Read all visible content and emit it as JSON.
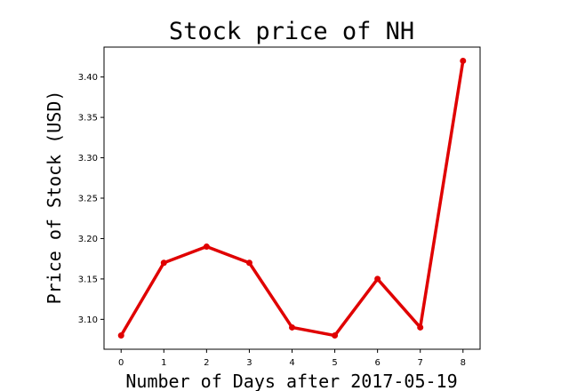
{
  "chart_data": {
    "type": "line",
    "title": "Stock price of NH",
    "xlabel": "Number of Days after 2017-05-19",
    "ylabel": "Price of Stock (USD)",
    "x": [
      0,
      1,
      2,
      3,
      4,
      5,
      6,
      7,
      8
    ],
    "series": [
      {
        "values": [
          3.08,
          3.17,
          3.19,
          3.17,
          3.09,
          3.08,
          3.15,
          3.09,
          3.42
        ],
        "color": "#e00000"
      }
    ],
    "xticks": [
      "0",
      "1",
      "2",
      "3",
      "4",
      "5",
      "6",
      "7",
      "8"
    ],
    "yticks": [
      "3.10",
      "3.15",
      "3.20",
      "3.25",
      "3.30",
      "3.35",
      "3.40"
    ],
    "xlim": [
      -0.4,
      8.4
    ],
    "ylim": [
      3.063,
      3.437
    ],
    "grid": false,
    "legend": "none"
  }
}
